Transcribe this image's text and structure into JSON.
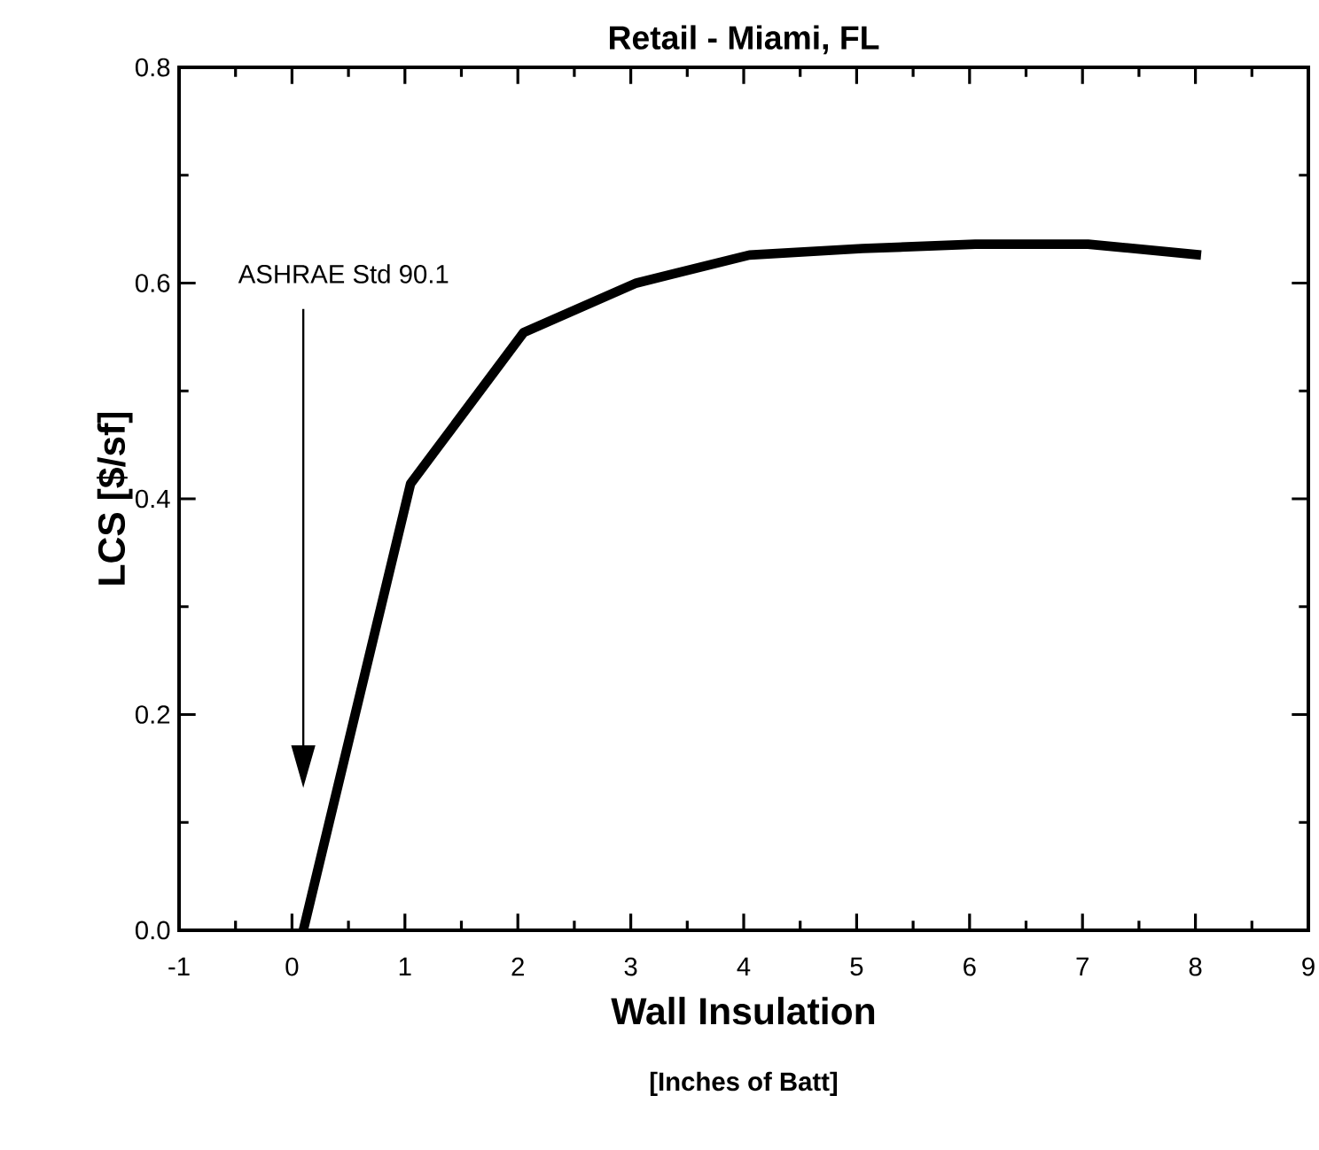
{
  "chart_data": {
    "type": "line",
    "title": "Retail - Miami, FL",
    "xlabel": "Wall Insulation",
    "ylabel": "LCS [$/sf]",
    "annotations": [
      "ASHRAE Std 90.1",
      "[Inches of Batt]"
    ],
    "x": [
      0.1,
      1.05,
      2.05,
      3.05,
      4.05,
      5.05,
      6.05,
      7.05,
      8.05
    ],
    "series": [
      {
        "color": "#000000",
        "values": [
          0.0,
          0.414,
          0.554,
          0.6,
          0.626,
          0.632,
          0.636,
          0.636,
          0.626
        ]
      }
    ],
    "xlim": [
      -1,
      9
    ],
    "ylim": [
      0,
      0.8
    ],
    "xticks": [
      -1,
      0,
      1,
      2,
      3,
      4,
      5,
      6,
      7,
      8,
      9
    ],
    "yticks": [
      {
        "value": 0,
        "label": "0.0"
      },
      {
        "value": 0.2,
        "label": "0.2"
      },
      {
        "value": 0.4,
        "label": "0.4"
      },
      {
        "value": 0.6,
        "label": "0.6"
      },
      {
        "value": 0.8,
        "label": "0.8"
      }
    ],
    "grid": false,
    "legend": false,
    "marker": "none",
    "line_style": "solid"
  }
}
